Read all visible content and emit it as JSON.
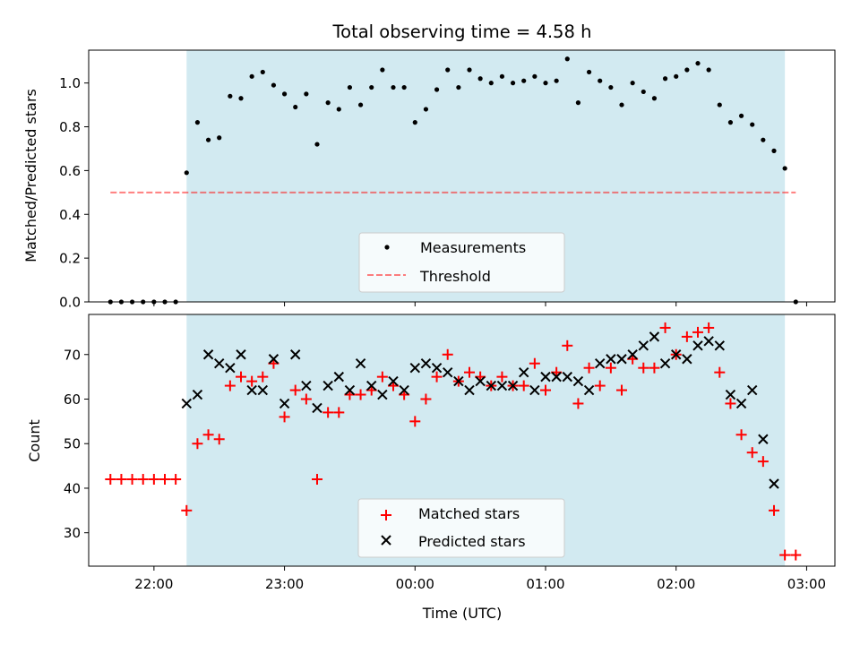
{
  "title": "Total observing time = 4.58 h",
  "xlabel": "Time (UTC)",
  "xticks": [
    "22:00",
    "23:00",
    "00:00",
    "01:00",
    "02:00",
    "03:00"
  ],
  "colors": {
    "shade": "#add8e6",
    "threshold": "#ff0000",
    "matched": "#ff0000",
    "predicted": "#000000",
    "measurements": "#000000"
  },
  "chart_data": [
    {
      "type": "scatter",
      "ylabel": "Matched/Predicted stars",
      "ylim": [
        0,
        1.15
      ],
      "yticks": [
        "0.0",
        "0.2",
        "0.4",
        "0.6",
        "0.8",
        "1.0"
      ],
      "xlim": [
        "21:30",
        "03:13"
      ],
      "shaded_span": [
        "22:15",
        "02:50"
      ],
      "legend_position": "lower center",
      "threshold": {
        "name": "Threshold",
        "value": 0.5,
        "x": [
          "21:40",
          "02:55"
        ]
      },
      "series": [
        {
          "name": "Measurements",
          "x": [
            "21:40",
            "21:45",
            "21:50",
            "21:55",
            "22:00",
            "22:05",
            "22:10",
            "22:15",
            "22:20",
            "22:25",
            "22:30",
            "22:35",
            "22:40",
            "22:45",
            "22:50",
            "22:55",
            "23:00",
            "23:05",
            "23:10",
            "23:15",
            "23:20",
            "23:25",
            "23:30",
            "23:35",
            "23:40",
            "23:45",
            "23:50",
            "23:55",
            "00:00",
            "00:05",
            "00:10",
            "00:15",
            "00:20",
            "00:25",
            "00:30",
            "00:35",
            "00:40",
            "00:45",
            "00:50",
            "00:55",
            "01:00",
            "01:05",
            "01:10",
            "01:15",
            "01:20",
            "01:25",
            "01:30",
            "01:35",
            "01:40",
            "01:45",
            "01:50",
            "01:55",
            "02:00",
            "02:05",
            "02:10",
            "02:15",
            "02:20",
            "02:25",
            "02:30",
            "02:35",
            "02:40",
            "02:45",
            "02:50",
            "02:55"
          ],
          "y": [
            0,
            0,
            0,
            0,
            0,
            0,
            0,
            0.59,
            0.82,
            0.74,
            0.75,
            0.94,
            0.93,
            1.03,
            1.05,
            0.99,
            0.95,
            0.89,
            0.95,
            0.72,
            0.91,
            0.88,
            0.98,
            0.9,
            0.98,
            1.06,
            0.98,
            0.98,
            0.82,
            0.88,
            0.97,
            1.06,
            0.98,
            1.06,
            1.02,
            1.0,
            1.03,
            1.0,
            1.01,
            1.03,
            1.0,
            1.01,
            1.11,
            0.91,
            1.05,
            1.01,
            0.98,
            0.9,
            1.0,
            0.96,
            0.93,
            1.02,
            1.03,
            1.06,
            1.09,
            1.06,
            0.9,
            0.82,
            0.85,
            0.81,
            0.74,
            0.69,
            0.61,
            0
          ]
        }
      ]
    },
    {
      "type": "scatter",
      "ylabel": "Count",
      "ylim": [
        22.5,
        79
      ],
      "yticks": [
        "30",
        "40",
        "50",
        "60",
        "70"
      ],
      "xlim": [
        "21:30",
        "03:13"
      ],
      "shaded_span": [
        "22:15",
        "02:50"
      ],
      "legend_position": "lower center",
      "series": [
        {
          "name": "Matched stars",
          "marker": "plus",
          "x": [
            "21:40",
            "21:45",
            "21:50",
            "21:55",
            "22:00",
            "22:05",
            "22:10",
            "22:15",
            "22:20",
            "22:25",
            "22:30",
            "22:35",
            "22:40",
            "22:45",
            "22:50",
            "22:55",
            "23:00",
            "23:05",
            "23:10",
            "23:15",
            "23:20",
            "23:25",
            "23:30",
            "23:35",
            "23:40",
            "23:45",
            "23:50",
            "23:55",
            "00:00",
            "00:05",
            "00:10",
            "00:15",
            "00:20",
            "00:25",
            "00:30",
            "00:35",
            "00:40",
            "00:45",
            "00:50",
            "00:55",
            "01:00",
            "01:05",
            "01:10",
            "01:15",
            "01:20",
            "01:25",
            "01:30",
            "01:35",
            "01:40",
            "01:45",
            "01:50",
            "01:55",
            "02:00",
            "02:05",
            "02:10",
            "02:15",
            "02:20",
            "02:25",
            "02:30",
            "02:35",
            "02:40",
            "02:45",
            "02:50",
            "02:55"
          ],
          "y": [
            42,
            42,
            42,
            42,
            42,
            42,
            42,
            35,
            50,
            52,
            51,
            63,
            65,
            64,
            65,
            68,
            56,
            62,
            60,
            42,
            57,
            57,
            61,
            61,
            62,
            65,
            63,
            61,
            55,
            60,
            65,
            70,
            64,
            66,
            65,
            63,
            65,
            63,
            63,
            68,
            62,
            66,
            72,
            59,
            67,
            63,
            67,
            62,
            69,
            67,
            67,
            76,
            70,
            74,
            75,
            76,
            66,
            59,
            52,
            48,
            46,
            35,
            25,
            25
          ]
        },
        {
          "name": "Predicted stars",
          "marker": "x",
          "x": [
            "22:15",
            "22:20",
            "22:25",
            "22:30",
            "22:35",
            "22:40",
            "22:45",
            "22:50",
            "22:55",
            "23:00",
            "23:05",
            "23:10",
            "23:15",
            "23:20",
            "23:25",
            "23:30",
            "23:35",
            "23:40",
            "23:45",
            "23:50",
            "23:55",
            "00:00",
            "00:05",
            "00:10",
            "00:15",
            "00:20",
            "00:25",
            "00:30",
            "00:35",
            "00:40",
            "00:45",
            "00:50",
            "00:55",
            "01:00",
            "01:05",
            "01:10",
            "01:15",
            "01:20",
            "01:25",
            "01:30",
            "01:35",
            "01:40",
            "01:45",
            "01:50",
            "01:55",
            "02:00",
            "02:05",
            "02:10",
            "02:15",
            "02:20",
            "02:25",
            "02:30",
            "02:35",
            "02:40",
            "02:45",
            "02:50"
          ],
          "y": [
            59,
            61,
            70,
            68,
            67,
            70,
            62,
            62,
            69,
            59,
            70,
            63,
            58,
            63,
            65,
            62,
            68,
            63,
            61,
            64,
            62,
            67,
            68,
            67,
            66,
            64,
            62,
            64,
            63,
            63,
            63,
            66,
            62,
            65,
            65,
            65,
            64,
            62,
            68,
            69,
            69,
            70,
            72,
            74,
            68,
            70,
            69,
            72,
            73,
            72,
            61,
            59,
            62,
            51,
            41,
            null
          ]
        }
      ]
    }
  ]
}
